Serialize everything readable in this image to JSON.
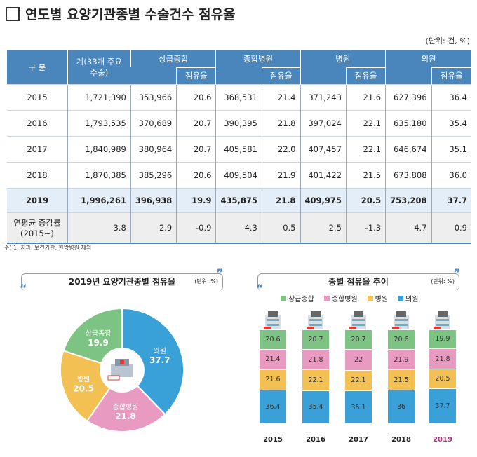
{
  "title": "연도별 요양기관종별 수술건수 점유율",
  "unit": "(단위: 건, %)",
  "table": {
    "headers": {
      "category": "구  분",
      "total": "계(33개 주요수술)",
      "tertiary": "상급종합",
      "general": "종합병원",
      "hospital": "병원",
      "clinic": "의원",
      "share": "점유율"
    },
    "rows": [
      [
        "2015",
        "1,721,390",
        "353,966",
        "20.6",
        "368,531",
        "21.4",
        "371,243",
        "21.6",
        "627,396",
        "36.4"
      ],
      [
        "2016",
        "1,793,535",
        "370,689",
        "20.7",
        "390,395",
        "21.8",
        "397,024",
        "22.1",
        "635,180",
        "35.4"
      ],
      [
        "2017",
        "1,840,989",
        "380,964",
        "20.7",
        "405,581",
        "22.0",
        "407,457",
        "22.1",
        "646,674",
        "35.1"
      ],
      [
        "2018",
        "1,870,385",
        "385,296",
        "20.6",
        "409,504",
        "21.9",
        "401,422",
        "21.5",
        "673,808",
        "36.0"
      ],
      [
        "2019",
        "1,996,261",
        "396,938",
        "19.9",
        "435,875",
        "21.8",
        "409,975",
        "20.5",
        "753,208",
        "37.7"
      ]
    ],
    "avg_row": [
      "연평균 증감률 (2015~)",
      "3.8",
      "2.9",
      "-0.9",
      "4.3",
      "0.5",
      "2.5",
      "-1.3",
      "4.7",
      "0.9"
    ]
  },
  "note": "주) 1. 치과, 보건기관, 한방병원 제외",
  "pie_panel": {
    "title": "2019년 요양기관종별 점유율",
    "unit": "(단위: %)"
  },
  "bar_panel": {
    "title": "종별 점유율 추이",
    "unit": "(단위: %)"
  },
  "colors": {
    "tertiary": "#7dc383",
    "general": "#e99ac0",
    "hospital": "#f3c153",
    "clinic": "#3aa0d8"
  },
  "chart_data": [
    {
      "type": "pie",
      "title": "2019년 요양기관종별 점유율",
      "slices": [
        {
          "label": "의원",
          "value": 37.7
        },
        {
          "label": "종합병원",
          "value": 21.8
        },
        {
          "label": "병원",
          "value": 20.5
        },
        {
          "label": "상급종합",
          "value": 19.9
        }
      ]
    },
    {
      "type": "bar",
      "stacked": true,
      "title": "종별 점유율 추이",
      "categories": [
        "2015",
        "2016",
        "2017",
        "2018",
        "2019"
      ],
      "legend": [
        "상급종합",
        "종합병원",
        "병원",
        "의원"
      ],
      "series": [
        {
          "name": "의원",
          "values": [
            36.4,
            35.4,
            35.1,
            36.0,
            37.7
          ]
        },
        {
          "name": "병원",
          "values": [
            21.6,
            22.1,
            22.1,
            21.5,
            20.5
          ]
        },
        {
          "name": "종합병원",
          "values": [
            21.4,
            21.8,
            22.0,
            21.9,
            21.8
          ]
        },
        {
          "name": "상급종합",
          "values": [
            20.6,
            20.7,
            20.7,
            20.6,
            19.9
          ]
        }
      ]
    }
  ]
}
